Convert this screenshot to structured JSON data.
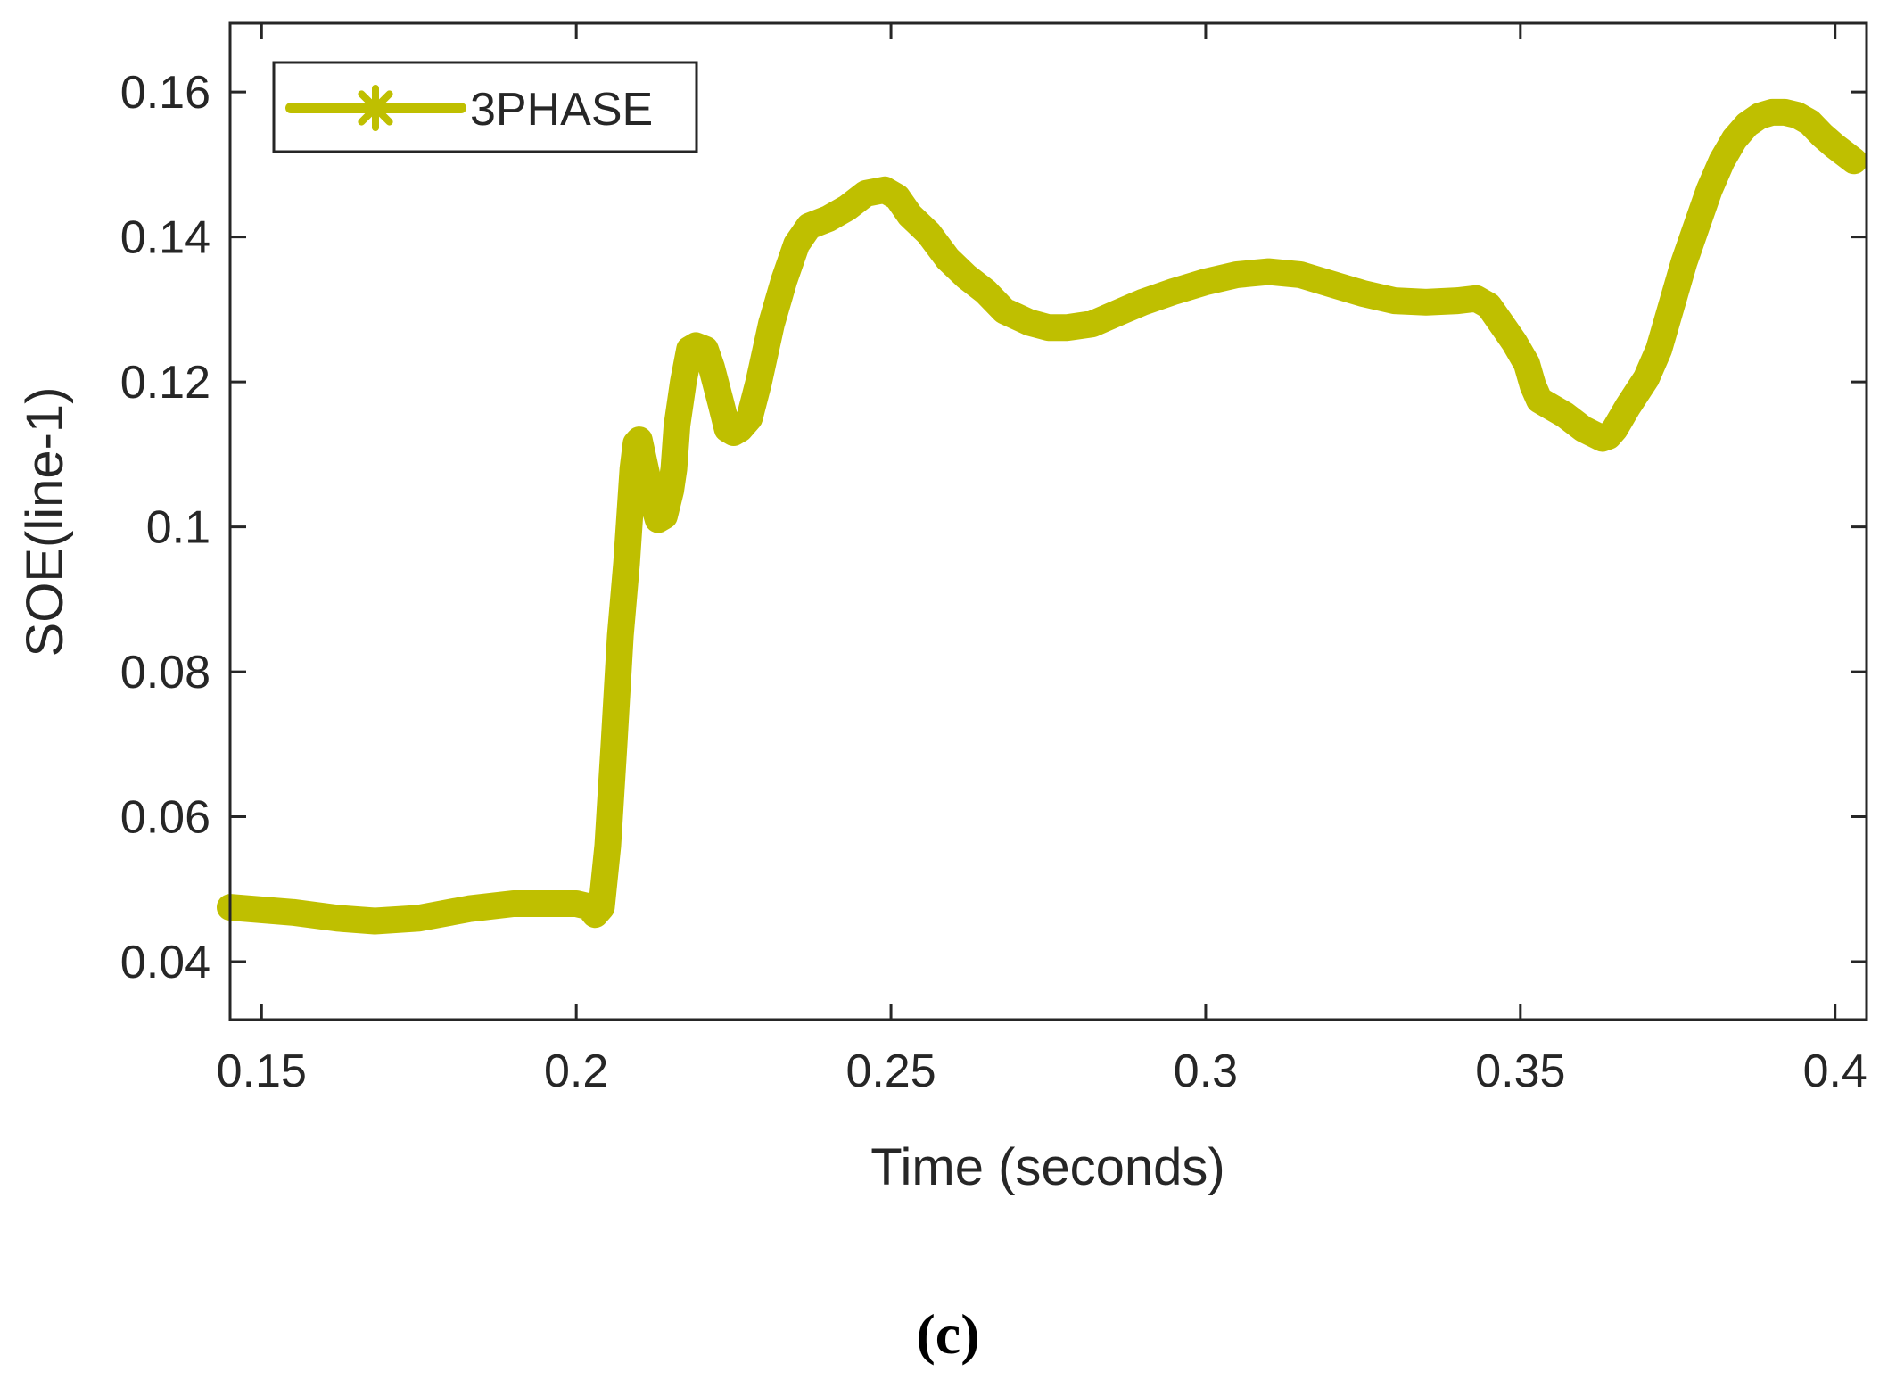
{
  "chart_data": {
    "type": "line",
    "xlabel": "Time (seconds)",
    "ylabel": "SOE(line-1)",
    "xlim": [
      0.145,
      0.405
    ],
    "ylim": [
      0.032,
      0.1695
    ],
    "xticks": [
      0.15,
      0.2,
      0.25,
      0.3,
      0.35,
      0.4
    ],
    "xtick_labels": [
      "0.15",
      "0.2",
      "0.25",
      "0.3",
      "0.35",
      "0.4"
    ],
    "yticks": [
      0.04,
      0.06,
      0.08,
      0.1,
      0.12,
      0.14,
      0.16
    ],
    "ytick_labels": [
      "0.04",
      "0.06",
      "0.08",
      "0.1",
      "0.12",
      "0.14",
      "0.16"
    ],
    "grid": false,
    "legend_position": "top-left",
    "series": [
      {
        "name": "3PHASE",
        "color": "#bfbf00",
        "marker": "asterisk",
        "x": [
          0.145,
          0.155,
          0.162,
          0.168,
          0.175,
          0.183,
          0.19,
          0.2,
          0.202,
          0.203,
          0.204,
          0.205,
          0.206,
          0.207,
          0.208,
          0.209,
          0.2095,
          0.21,
          0.211,
          0.212,
          0.213,
          0.214,
          0.215,
          0.2155,
          0.216,
          0.217,
          0.218,
          0.219,
          0.2205,
          0.2215,
          0.223,
          0.224,
          0.225,
          0.226,
          0.2275,
          0.229,
          0.231,
          0.233,
          0.235,
          0.237,
          0.24,
          0.243,
          0.246,
          0.249,
          0.251,
          0.253,
          0.256,
          0.259,
          0.262,
          0.265,
          0.268,
          0.272,
          0.275,
          0.278,
          0.282,
          0.286,
          0.29,
          0.295,
          0.3,
          0.305,
          0.31,
          0.315,
          0.32,
          0.325,
          0.33,
          0.335,
          0.34,
          0.343,
          0.345,
          0.347,
          0.349,
          0.351,
          0.352,
          0.353,
          0.355,
          0.357,
          0.36,
          0.363,
          0.364,
          0.365,
          0.367,
          0.37,
          0.372,
          0.374,
          0.376,
          0.378,
          0.38,
          0.382,
          0.384,
          0.386,
          0.388,
          0.39,
          0.392,
          0.394,
          0.396,
          0.398,
          0.4,
          0.403
        ],
        "y": [
          0.0475,
          0.0468,
          0.046,
          0.0456,
          0.046,
          0.0473,
          0.048,
          0.048,
          0.0476,
          0.0465,
          0.0475,
          0.056,
          0.07,
          0.085,
          0.095,
          0.108,
          0.1115,
          0.112,
          0.108,
          0.104,
          0.101,
          0.1015,
          0.105,
          0.108,
          0.114,
          0.12,
          0.1245,
          0.125,
          0.1245,
          0.122,
          0.117,
          0.1135,
          0.113,
          0.1135,
          0.115,
          0.12,
          0.128,
          0.134,
          0.139,
          0.1415,
          0.1425,
          0.144,
          0.146,
          0.1465,
          0.1455,
          0.143,
          0.1405,
          0.137,
          0.1345,
          0.1325,
          0.1298,
          0.1282,
          0.1275,
          0.1275,
          0.128,
          0.1295,
          0.131,
          0.1325,
          0.1338,
          0.1348,
          0.1352,
          0.1348,
          0.1335,
          0.1322,
          0.1312,
          0.131,
          0.1312,
          0.1315,
          0.1305,
          0.128,
          0.1255,
          0.1225,
          0.1195,
          0.1175,
          0.1165,
          0.1155,
          0.1135,
          0.1122,
          0.1125,
          0.1135,
          0.1165,
          0.1205,
          0.1245,
          0.1305,
          0.1365,
          0.1415,
          0.1465,
          0.1505,
          0.1535,
          0.1555,
          0.1567,
          0.1572,
          0.1572,
          0.1568,
          0.1558,
          0.154,
          0.1525,
          0.1505
        ]
      }
    ]
  },
  "caption": "(c)"
}
